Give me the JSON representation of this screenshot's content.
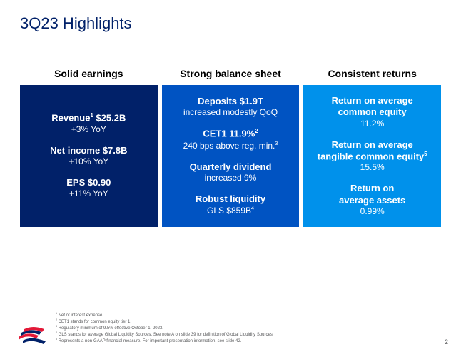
{
  "title": "3Q23 Highlights",
  "page_number": "2",
  "colors": {
    "title_color": "#012169",
    "card1_bg": "#012169",
    "card2_bg": "#0053c2",
    "card3_bg": "#0091eb",
    "card_text": "#ffffff",
    "header_text": "#000000",
    "footnote_text": "#58595b",
    "background": "#ffffff"
  },
  "typography": {
    "title_fontsize": 22,
    "header_fontsize": 14,
    "metric_title_fontsize": 13,
    "metric_sub_fontsize": 12,
    "footnote_fontsize": 6
  },
  "columns": [
    {
      "header": "Solid earnings",
      "metrics": [
        {
          "title_html": "Revenue<sup>1</sup> $25.2B",
          "sub": "+3% YoY"
        },
        {
          "title_html": "Net income $7.8B",
          "sub": "+10% YoY"
        },
        {
          "title_html": "EPS $0.90",
          "sub": "+11% YoY"
        }
      ]
    },
    {
      "header": "Strong balance sheet",
      "metrics": [
        {
          "title_html": "Deposits $1.9T",
          "sub": "increased modestly QoQ"
        },
        {
          "title_html": "CET1 11.9%<sup>2</sup>",
          "sub_html": "240 bps above reg. min.<sup>3</sup>"
        },
        {
          "title_html": "Quarterly dividend",
          "sub": "increased 9%"
        },
        {
          "title_html": "Robust liquidity",
          "sub_html": "GLS $859B<sup>4</sup>"
        }
      ]
    },
    {
      "header": "Consistent returns",
      "metrics": [
        {
          "title_html": "Return on average<br>common equity",
          "sub": "11.2%"
        },
        {
          "title_html": "Return on average<br>tangible common equity<sup>5</sup>",
          "sub": "15.5%"
        },
        {
          "title_html": "Return on<br>average assets",
          "sub": "0.99%"
        }
      ]
    }
  ],
  "footnotes": [
    "Net of interest expense.",
    "CET1 stands for common equity tier 1.",
    "Regulatory minimum of 9.5% effective October 1, 2023.",
    "GLS stands for average Global Liquidity Sources. See note A on slide 39 for definition of Global Liquidity Sources.",
    "Represents a non-GAAP financial measure. For important presentation information, see slide 42."
  ],
  "logo": {
    "stripe_color_red": "#e31837",
    "stripe_color_blue": "#012169"
  }
}
